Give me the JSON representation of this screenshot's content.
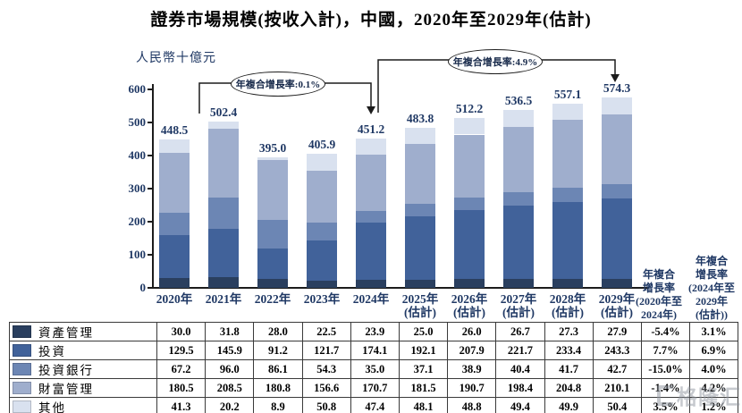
{
  "title": "證券市場規模(按收入計)，中國，2020年至2029年(估計)",
  "chart_data": {
    "type": "bar",
    "stacked": true,
    "title": "證券市場規模(按收入計)，中國，2020年至2029年(估計)",
    "ylabel": "人民幣十億元",
    "ylim": [
      0,
      600
    ],
    "y_ticks": [
      0,
      100,
      200,
      300,
      400,
      500,
      600
    ],
    "grid": false,
    "legend_position": "table-left",
    "categories": [
      {
        "label": "2020年",
        "note": ""
      },
      {
        "label": "2021年",
        "note": ""
      },
      {
        "label": "2022年",
        "note": ""
      },
      {
        "label": "2023年",
        "note": ""
      },
      {
        "label": "2024年",
        "note": ""
      },
      {
        "label": "2025年",
        "note": "(估計)"
      },
      {
        "label": "2026年",
        "note": "(估計)"
      },
      {
        "label": "2027年",
        "note": "(估計)"
      },
      {
        "label": "2028年",
        "note": "(估計)"
      },
      {
        "label": "2029年",
        "note": "(估計)"
      }
    ],
    "totals": [
      448.5,
      502.4,
      395.0,
      405.9,
      451.2,
      483.8,
      512.2,
      536.5,
      557.1,
      574.3
    ],
    "series": [
      {
        "name": "資產管理",
        "color": "#2A3F5F",
        "values": [
          30.0,
          31.8,
          28.0,
          22.5,
          23.9,
          25.0,
          26.0,
          26.7,
          27.3,
          27.9
        ],
        "cagr_2020_2024": "-5.4%",
        "cagr_2024_2029": "3.1%"
      },
      {
        "name": "投資",
        "color": "#41629A",
        "values": [
          129.5,
          145.9,
          91.2,
          121.7,
          174.1,
          192.1,
          207.9,
          221.7,
          233.4,
          243.3
        ],
        "cagr_2020_2024": "7.7%",
        "cagr_2024_2029": "6.9%"
      },
      {
        "name": "投資銀行",
        "color": "#6C86B4",
        "values": [
          67.2,
          96.0,
          86.1,
          54.3,
          35.0,
          37.1,
          38.9,
          40.4,
          41.7,
          42.7
        ],
        "cagr_2020_2024": "-15.0%",
        "cagr_2024_2029": "4.0%"
      },
      {
        "name": "財富管理",
        "color": "#9FAECD",
        "values": [
          180.5,
          208.5,
          180.8,
          156.6,
          170.7,
          181.5,
          190.7,
          198.4,
          204.8,
          210.1
        ],
        "cagr_2020_2024": "-1.4%",
        "cagr_2024_2029": "4.2%"
      },
      {
        "name": "其他",
        "color": "#D9E1EF",
        "values": [
          41.3,
          20.2,
          8.9,
          50.8,
          47.4,
          48.1,
          48.8,
          49.4,
          49.9,
          50.4
        ],
        "cagr_2020_2024": "3.5%",
        "cagr_2024_2029": "1.2%"
      }
    ],
    "annotations": [
      {
        "label": "年複合增長率:0.1%",
        "from": "2020年",
        "to": "2024年"
      },
      {
        "label": "年複合增長率:4.9%",
        "from": "2024年",
        "to": "2029年(估計)"
      }
    ]
  },
  "table": {
    "cagr_col1_header": "年複合\n增長率\n(2020年至\n2024年)",
    "cagr_col2_header": "年複合\n增長率\n(2024年至\n2029年\n(估計))"
  },
  "watermark": "格隆汇"
}
